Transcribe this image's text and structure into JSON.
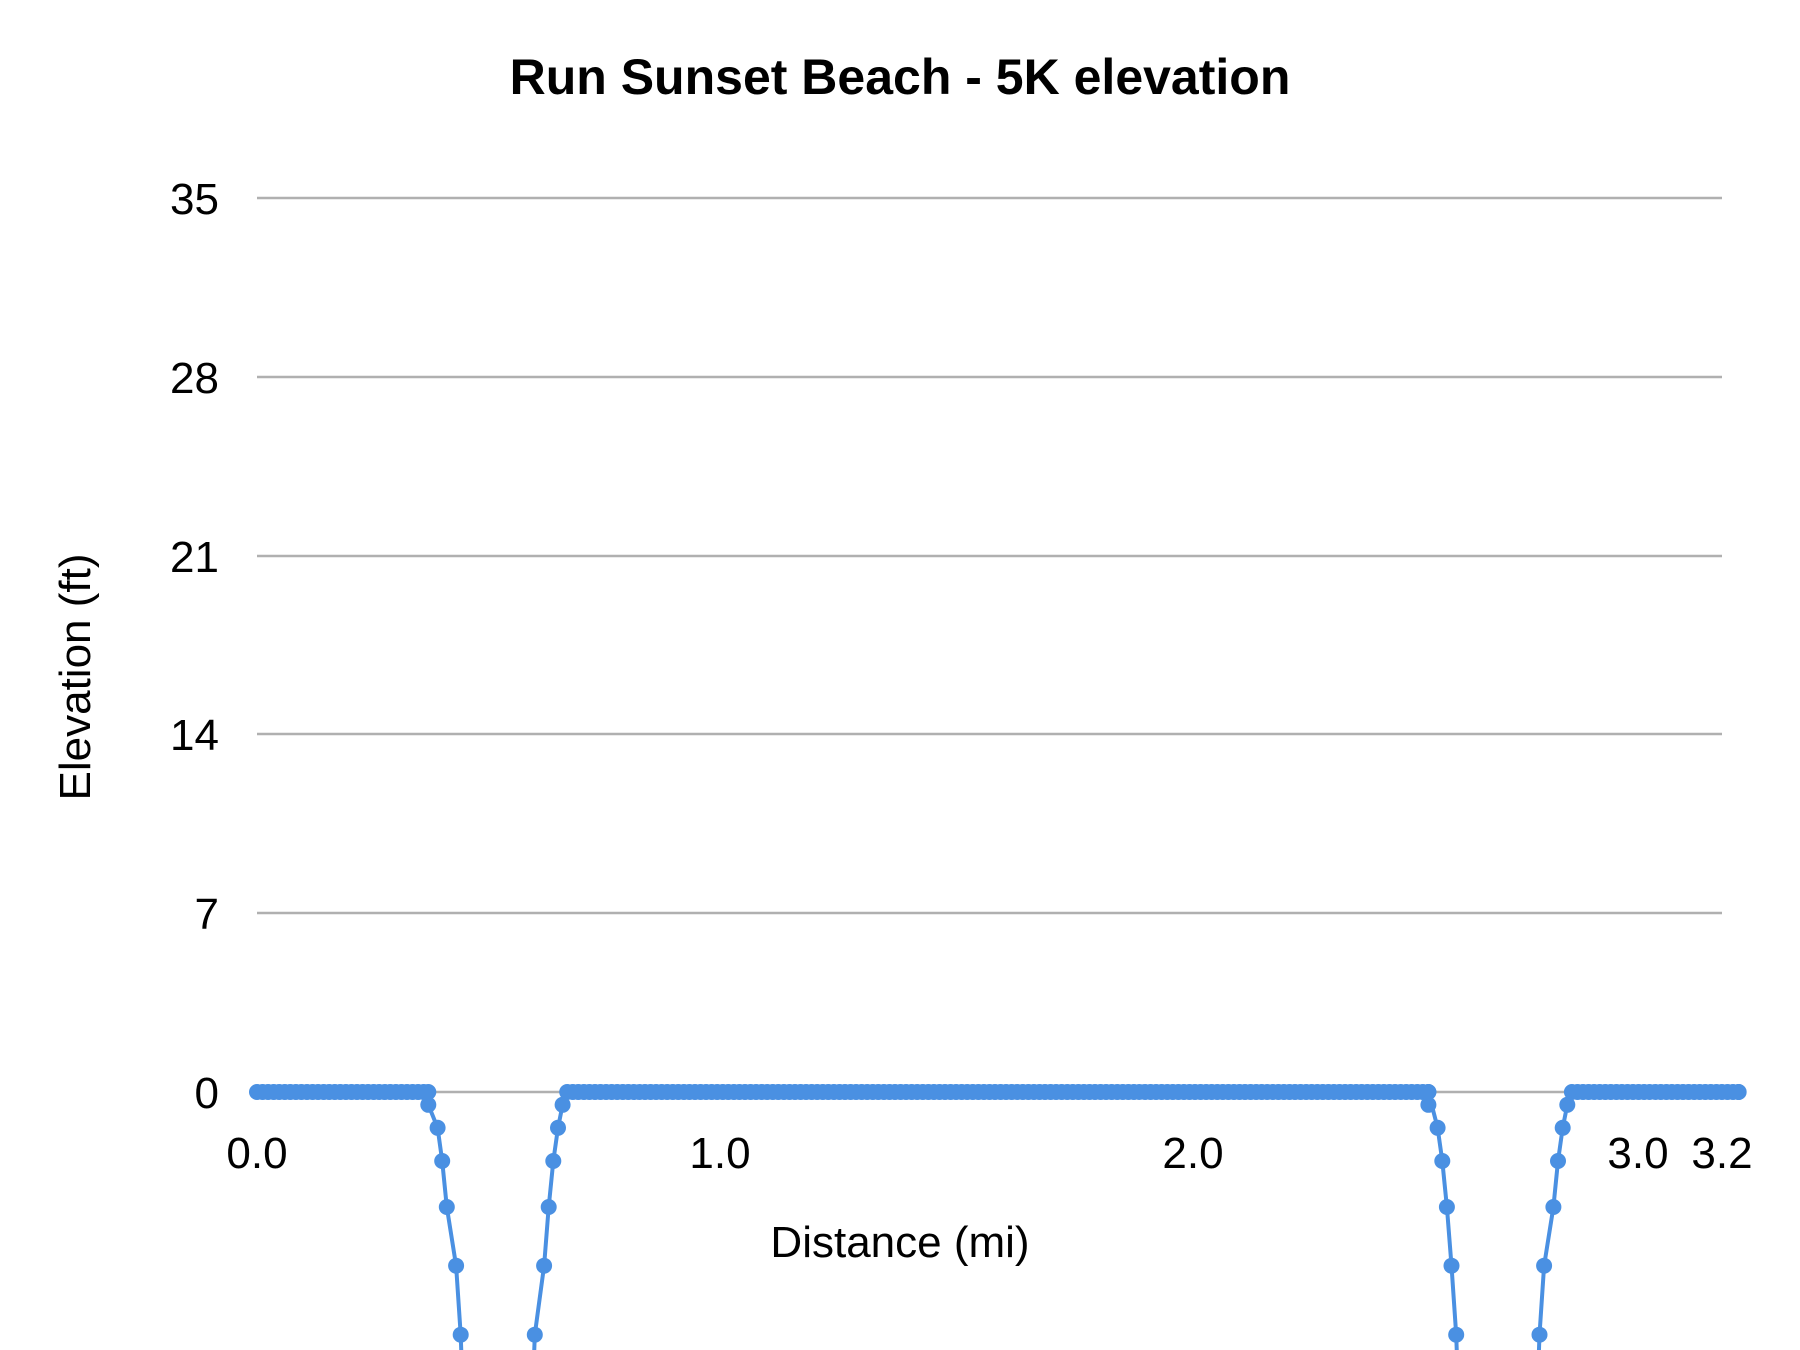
{
  "chart_data": {
    "type": "line",
    "title": "Run Sunset Beach - 5K elevation",
    "xlabel": "Distance (mi)",
    "ylabel": "Elevation (ft)",
    "xlim": [
      0.0,
      3.2
    ],
    "ylim": [
      0,
      35
    ],
    "x_ticks": [
      "0.0",
      "1.0",
      "2.0",
      "3.0",
      "3.2"
    ],
    "x_tick_values": [
      0.0,
      1.0,
      2.0,
      3.0,
      3.2
    ],
    "y_ticks": [
      "35",
      "28",
      "21",
      "14",
      "7",
      "0"
    ],
    "y_tick_values": [
      35,
      28,
      21,
      14,
      7,
      0
    ],
    "grid": true,
    "legend": null,
    "series": [
      {
        "name": "Elevation",
        "color": "#4a90e2",
        "marker": "circle",
        "note": "Flat at 0 ft except two dips that extend below the visible axis range (clipped at bottom)",
        "segments": [
          {
            "x_start": 0.0,
            "x_end": 0.37,
            "y": 0
          },
          {
            "dip": true,
            "x": [
              0.37,
              0.39,
              0.4,
              0.41,
              0.43,
              0.44
            ],
            "y": [
              -0.5,
              -1.4,
              -2.7,
              -4.5,
              -6.8,
              -9.5
            ]
          },
          {
            "dip": true,
            "x": [
              0.6,
              0.62,
              0.63,
              0.64,
              0.65,
              0.66
            ],
            "y": [
              -9.5,
              -6.8,
              -4.5,
              -2.7,
              -1.4,
              -0.5
            ]
          },
          {
            "x_start": 0.67,
            "x_end": 2.53,
            "y": 0
          },
          {
            "dip": true,
            "x": [
              2.53,
              2.55,
              2.56,
              2.57,
              2.58,
              2.59
            ],
            "y": [
              -0.5,
              -1.4,
              -2.7,
              -4.5,
              -6.8,
              -9.5
            ]
          },
          {
            "dip": true,
            "x": [
              2.77,
              2.78,
              2.8,
              2.81,
              2.82,
              2.83
            ],
            "y": [
              -9.5,
              -6.8,
              -4.5,
              -2.7,
              -1.4,
              -0.5
            ]
          },
          {
            "x_start": 2.84,
            "x_end": 3.2,
            "y": 0
          }
        ]
      }
    ]
  },
  "colors": {
    "series": "#4a90e2",
    "grid": "#b0b0b0",
    "text": "#000000",
    "background": "#ffffff"
  }
}
